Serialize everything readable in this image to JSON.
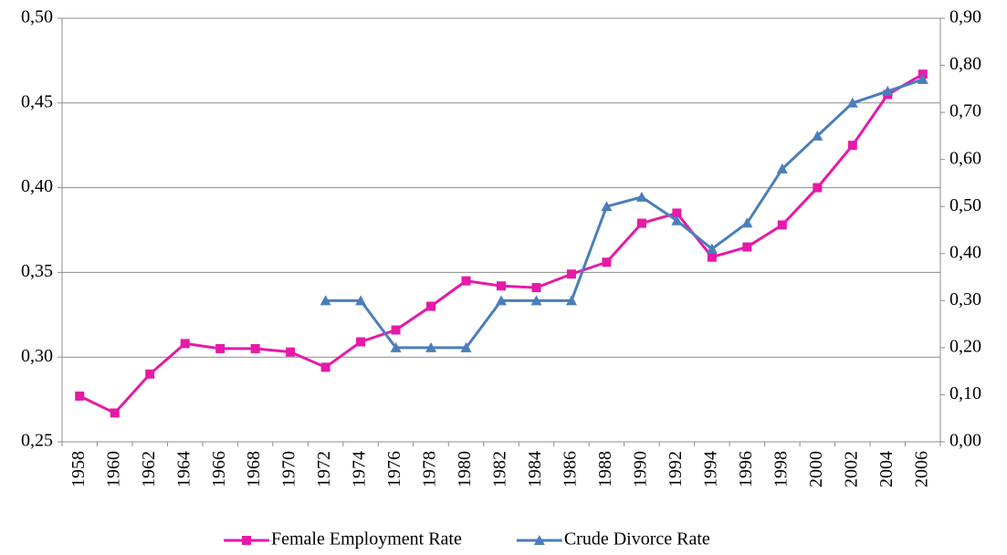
{
  "chart_data": {
    "type": "line",
    "categories": [
      "1958",
      "1960",
      "1962",
      "1964",
      "1966",
      "1968",
      "1970",
      "1972",
      "1974",
      "1976",
      "1978",
      "1980",
      "1982",
      "1984",
      "1986",
      "1988",
      "1990",
      "1992",
      "1994",
      "1996",
      "1998",
      "2000",
      "2002",
      "2004",
      "2006"
    ],
    "series": [
      {
        "name": "Female Employment Rate",
        "color": "#e619a8",
        "marker": "square",
        "values": [
          0.277,
          0.267,
          0.29,
          0.308,
          0.305,
          0.305,
          0.303,
          0.294,
          0.309,
          0.316,
          0.33,
          0.345,
          0.342,
          0.341,
          0.349,
          0.356,
          0.379,
          0.385,
          0.359,
          0.365,
          0.378,
          0.4,
          0.425,
          0.455,
          0.467
        ]
      },
      {
        "name": "Crude Divorce Rate",
        "color": "#4a7ebb",
        "marker": "triangle",
        "axis": "y2",
        "values": [
          null,
          null,
          null,
          null,
          null,
          null,
          null,
          0.3,
          0.3,
          0.2,
          0.2,
          0.2,
          0.3,
          0.3,
          0.3,
          0.5,
          0.52,
          0.47,
          0.41,
          0.465,
          0.58,
          0.65,
          0.72,
          0.745,
          0.77
        ]
      }
    ],
    "ylim": [
      0.25,
      0.5
    ],
    "yticks": [
      {
        "value": 0.25,
        "label": "0,25"
      },
      {
        "value": 0.3,
        "label": "0,30"
      },
      {
        "value": 0.35,
        "label": "0,35"
      },
      {
        "value": 0.4,
        "label": "0,40"
      },
      {
        "value": 0.45,
        "label": "0,45"
      },
      {
        "value": 0.5,
        "label": "0,50"
      }
    ],
    "y2lim": [
      0,
      0.9
    ],
    "y2ticks": [
      {
        "value": 0,
        "label": "0,00"
      },
      {
        "value": 0.1,
        "label": "0,10"
      },
      {
        "value": 0.2,
        "label": "0,20"
      },
      {
        "value": 0.3,
        "label": "0,30"
      },
      {
        "value": 0.4,
        "label": "0,40"
      },
      {
        "value": 0.5,
        "label": "0,50"
      },
      {
        "value": 0.6,
        "label": "0,60"
      },
      {
        "value": 0.7,
        "label": "0,70"
      },
      {
        "value": 0.8,
        "label": "0,80"
      },
      {
        "value": 0.9,
        "label": "0,90"
      }
    ],
    "grid": true,
    "legend": "bottom"
  }
}
